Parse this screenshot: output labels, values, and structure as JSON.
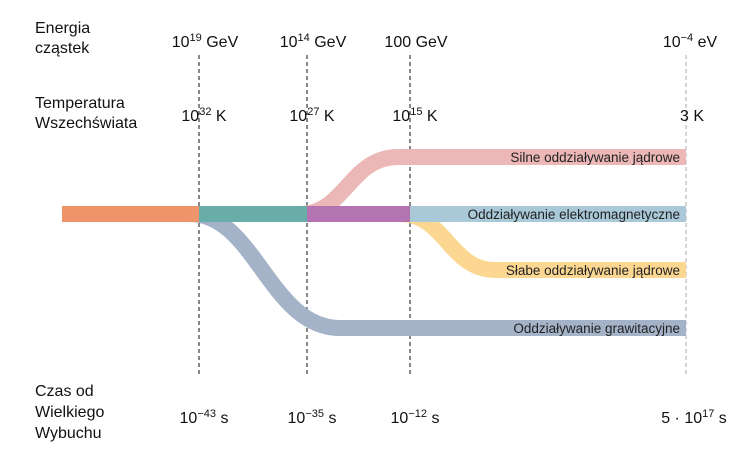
{
  "row_labels": {
    "energy": [
      "Energia",
      "cząstek"
    ],
    "temperature": [
      "Temperatura",
      "Wszechświata"
    ],
    "time": [
      "Czas od",
      "Wielkiego",
      "Wybuchu"
    ]
  },
  "epochs": [
    {
      "energy": {
        "base": "10",
        "exp": "19",
        "unit": " GeV"
      },
      "temperature": {
        "base": "10",
        "exp": "32",
        "unit": " K"
      },
      "time": {
        "pre": "",
        "base": "10",
        "exp": "−43",
        "unit": " s"
      }
    },
    {
      "energy": {
        "base": "10",
        "exp": "14",
        "unit": " GeV"
      },
      "temperature": {
        "base": "10",
        "exp": "27",
        "unit": " K"
      },
      "time": {
        "pre": "",
        "base": "10",
        "exp": "−35",
        "unit": " s"
      }
    },
    {
      "energy": {
        "base": "100 GeV",
        "exp": "",
        "unit": ""
      },
      "temperature": {
        "base": "10",
        "exp": "15",
        "unit": " K"
      },
      "time": {
        "pre": "",
        "base": "10",
        "exp": "−12",
        "unit": " s"
      }
    },
    {
      "energy": {
        "base": "10",
        "exp": "−4",
        "unit": " eV"
      },
      "temperature": {
        "base": "3 K",
        "exp": "",
        "unit": ""
      },
      "time": {
        "pre": "5 · ",
        "base": "10",
        "exp": "17",
        "unit": " s"
      }
    }
  ],
  "forces": {
    "strong": "Silne oddziaływanie jądrowe",
    "electromagnetic": "Oddziaływanie elektromagnetyczne",
    "weak": "Słabe oddziaływanie jądrowe",
    "gravity": "Oddziaływanie grawitacyjne"
  },
  "colors": {
    "unified": "#f0956b",
    "gut_gravity_split": "#68ada8",
    "electroweak": "#b473b1",
    "electromagnetic": "#a9c8d8",
    "strong": "#ecb7b7",
    "weak": "#fcd792",
    "gravity": "#a5b3c8"
  }
}
